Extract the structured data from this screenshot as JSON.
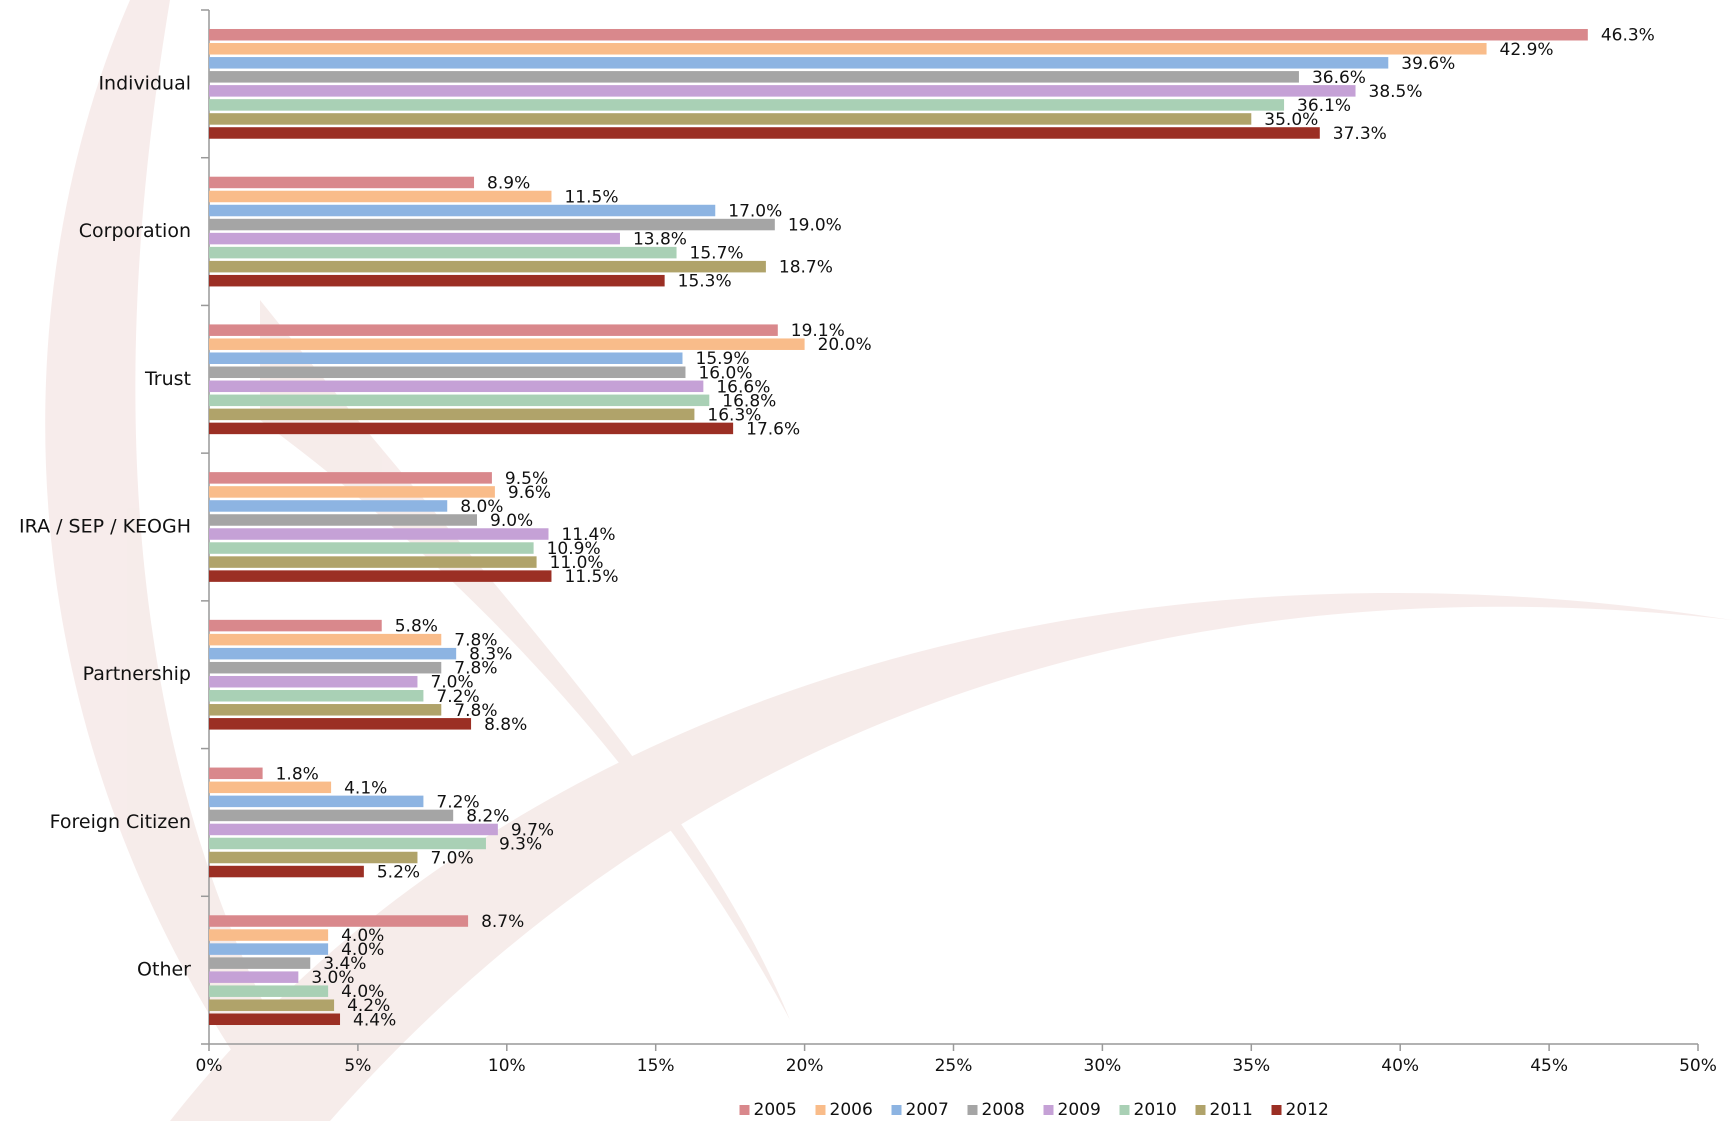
{
  "chart_data": {
    "type": "bar",
    "orientation": "horizontal",
    "categories": [
      "Individual",
      "Corporation",
      "Trust",
      "IRA / SEP / KEOGH",
      "Partnership",
      "Foreign Citizen",
      "Other"
    ],
    "series": [
      {
        "name": "2005",
        "color": "#d9888c",
        "values": [
          46.3,
          8.9,
          19.1,
          9.5,
          5.8,
          1.8,
          8.7
        ],
        "value_labels": [
          "46.3%",
          "8.9%",
          "19.1%",
          "9.5%",
          "5.8%",
          "1.8%",
          "8.7%"
        ]
      },
      {
        "name": "2006",
        "color": "#f9bc8a",
        "values": [
          42.9,
          11.5,
          20.0,
          9.6,
          7.8,
          4.1,
          4.0
        ],
        "value_labels": [
          "42.9%",
          "11.5%",
          "20.0%",
          "9.6%",
          "7.8%",
          "4.1%",
          "4.0%"
        ]
      },
      {
        "name": "2007",
        "color": "#8db4e2",
        "values": [
          39.6,
          17.0,
          15.9,
          8.0,
          8.3,
          7.2,
          4.0
        ],
        "value_labels": [
          "39.6%",
          "17.0%",
          "15.9%",
          "8.0%",
          "8.3%",
          "7.2%",
          "4.0%"
        ]
      },
      {
        "name": "2008",
        "color": "#a5a5a5",
        "values": [
          36.6,
          19.0,
          16.0,
          9.0,
          7.8,
          8.2,
          3.4
        ],
        "value_labels": [
          "36.6%",
          "19.0%",
          "16.0%",
          "9.0%",
          "7.8%",
          "8.2%",
          "3.4%"
        ]
      },
      {
        "name": "2009",
        "color": "#c5a1d6",
        "values": [
          38.5,
          13.8,
          16.6,
          11.4,
          7.0,
          9.7,
          3.0
        ],
        "value_labels": [
          "38.5%",
          "13.8%",
          "16.6%",
          "11.4%",
          "7.0%",
          "9.7%",
          "3.0%"
        ]
      },
      {
        "name": "2010",
        "color": "#a9d0b5",
        "values": [
          36.1,
          15.7,
          16.8,
          10.9,
          7.2,
          9.3,
          4.0
        ],
        "value_labels": [
          "36.1%",
          "15.7%",
          "16.8%",
          "10.9%",
          "7.2%",
          "9.3%",
          "4.0%"
        ]
      },
      {
        "name": "2011",
        "color": "#b0a36a",
        "values": [
          35.0,
          18.7,
          16.3,
          11.0,
          7.8,
          7.0,
          4.2
        ],
        "value_labels": [
          "35.0%",
          "18.7%",
          "16.3%",
          "11.0%",
          "7.8%",
          "7.0%",
          "4.2%"
        ]
      },
      {
        "name": "2012",
        "color": "#9b2f24",
        "values": [
          37.3,
          15.3,
          17.6,
          11.5,
          8.8,
          5.2,
          4.4
        ],
        "value_labels": [
          "37.3%",
          "15.3%",
          "17.6%",
          "11.5%",
          "8.8%",
          "5.2%",
          "4.4%"
        ]
      }
    ],
    "xlim": [
      0,
      50
    ],
    "xticks": [
      {
        "value": 0,
        "label": "0%"
      },
      {
        "value": 5,
        "label": "5%"
      },
      {
        "value": 10,
        "label": "10%"
      },
      {
        "value": 15,
        "label": "15%"
      },
      {
        "value": 20,
        "label": "20%"
      },
      {
        "value": 25,
        "label": "25%"
      },
      {
        "value": 30,
        "label": "30%"
      },
      {
        "value": 35,
        "label": "35%"
      },
      {
        "value": 40,
        "label": "40%"
      },
      {
        "value": 45,
        "label": "45%"
      },
      {
        "value": 50,
        "label": "50%"
      }
    ],
    "legend": "bottom"
  }
}
